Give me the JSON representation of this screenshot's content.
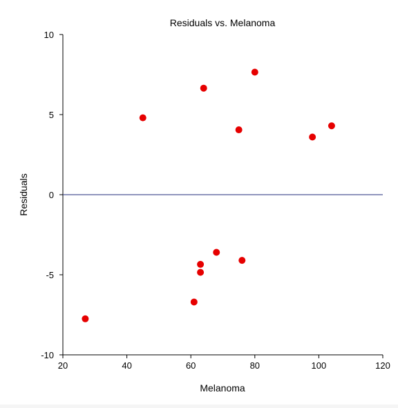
{
  "chart_data": {
    "type": "scatter",
    "title": "Residuals vs. Melanoma",
    "xlabel": "Melanoma",
    "ylabel": "Residuals",
    "xlim": [
      20,
      120
    ],
    "ylim": [
      -10,
      10
    ],
    "xticks": [
      20,
      40,
      60,
      80,
      100,
      120
    ],
    "yticks": [
      -10,
      -5,
      0,
      5,
      10
    ],
    "grid": false,
    "reference_line": {
      "y": 0,
      "color": "#1f2a7a"
    },
    "marker_color": "#e60000",
    "points": [
      {
        "x": 27,
        "y": -7.75
      },
      {
        "x": 45,
        "y": 4.8
      },
      {
        "x": 61,
        "y": -6.7
      },
      {
        "x": 63,
        "y": -4.35
      },
      {
        "x": 63,
        "y": -4.85
      },
      {
        "x": 64,
        "y": 6.65
      },
      {
        "x": 68,
        "y": -3.6
      },
      {
        "x": 75,
        "y": 4.05
      },
      {
        "x": 76,
        "y": -4.1
      },
      {
        "x": 80,
        "y": 7.65
      },
      {
        "x": 98,
        "y": 3.6
      },
      {
        "x": 104,
        "y": 4.3
      }
    ]
  }
}
